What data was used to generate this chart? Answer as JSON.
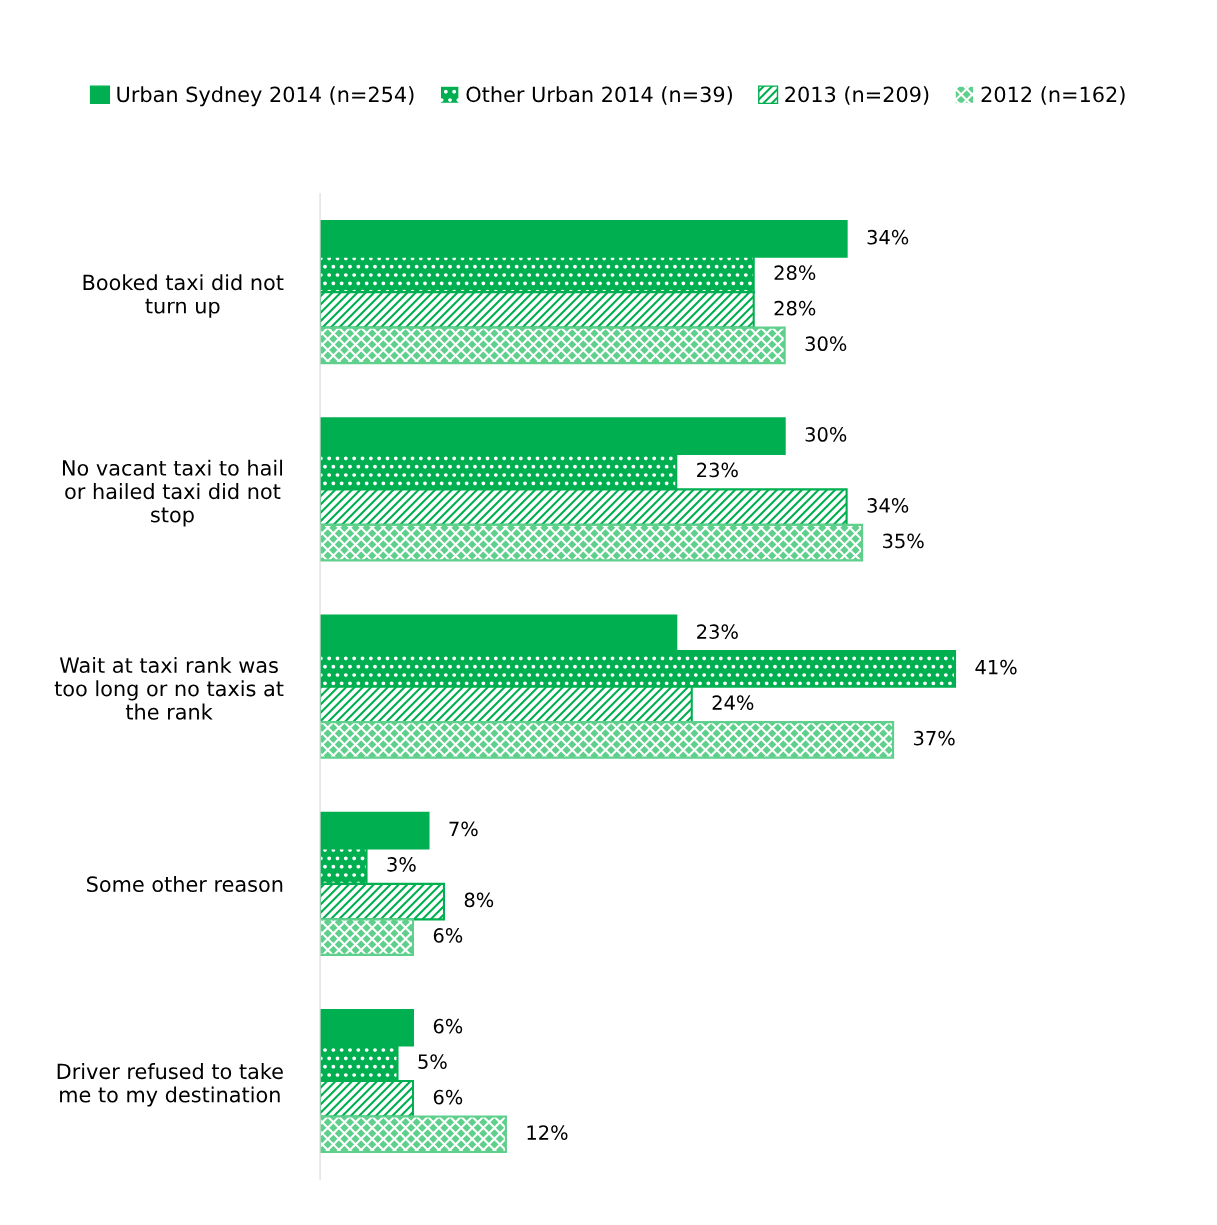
{
  "chart_data": {
    "type": "bar",
    "orientation": "horizontal",
    "legend": "top",
    "grid": false,
    "categories": [
      "Booked taxi did not\nturn up",
      "No vacant taxi to hail\nor hailed taxi did not\nstop",
      "Wait at taxi rank was\ntoo long or no taxis at\nthe rank",
      "Some other reason",
      "Driver refused to take\nme to my destination"
    ],
    "series": [
      {
        "name": "Urban Sydney 2014 (n=254)",
        "color": "#00b050",
        "values": [
          34,
          30,
          23,
          7,
          6
        ],
        "value_labels": [
          "34%",
          "30%",
          "23%",
          "7%",
          "6%"
        ]
      },
      {
        "name": "Other Urban 2014 (n=39)",
        "color": "#00b050",
        "values": [
          28,
          23,
          41,
          3,
          5
        ],
        "value_labels": [
          "28%",
          "23%",
          "41%",
          "3%",
          "5%"
        ]
      },
      {
        "name": "2013 (n=209)",
        "color": "#00b050",
        "values": [
          28,
          34,
          24,
          8,
          6
        ],
        "value_labels": [
          "28%",
          "34%",
          "24%",
          "8%",
          "6%"
        ]
      },
      {
        "name": "2012 (n=162)",
        "color": "#5fcf8c",
        "values": [
          30,
          35,
          37,
          6,
          12
        ],
        "value_labels": [
          "30%",
          "35%",
          "37%",
          "6%",
          "12%"
        ]
      }
    ]
  }
}
